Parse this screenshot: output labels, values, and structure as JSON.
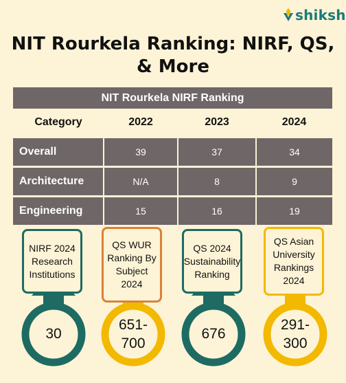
{
  "brand": {
    "logo_text": "shiksha"
  },
  "title": {
    "line1": "NIT Rourkela Ranking: NIRF, QS,",
    "line2": "& More"
  },
  "table": {
    "caption": "NIT Rourkela NIRF Ranking",
    "headers": [
      "Category",
      "2022",
      "2023",
      "2024"
    ],
    "rows": [
      [
        "Overall",
        "39",
        "37",
        "34"
      ],
      [
        "Architecture",
        "N/A",
        "8",
        "9"
      ],
      [
        "Engineering",
        "15",
        "16",
        "19"
      ]
    ]
  },
  "badges": [
    {
      "label": "NIRF 2024 Research Institutions",
      "value": "30",
      "color": "#1d6b63"
    },
    {
      "label": "QS WUR Ranking By Subject 2024",
      "value": "651-700",
      "color": "#f2b900"
    },
    {
      "label": "QS 2024 Sustainability Ranking",
      "value": "676",
      "color": "#1d6b63"
    },
    {
      "label": "QS Asian University Rankings 2024",
      "value": "291-300",
      "color": "#f2b900"
    }
  ],
  "colors": {
    "teal": "#1d6b63",
    "yellow": "#f2b900",
    "orange_border": "#d9823a",
    "table_bg": "#6f6668",
    "page_bg": "#fdf3d6"
  }
}
